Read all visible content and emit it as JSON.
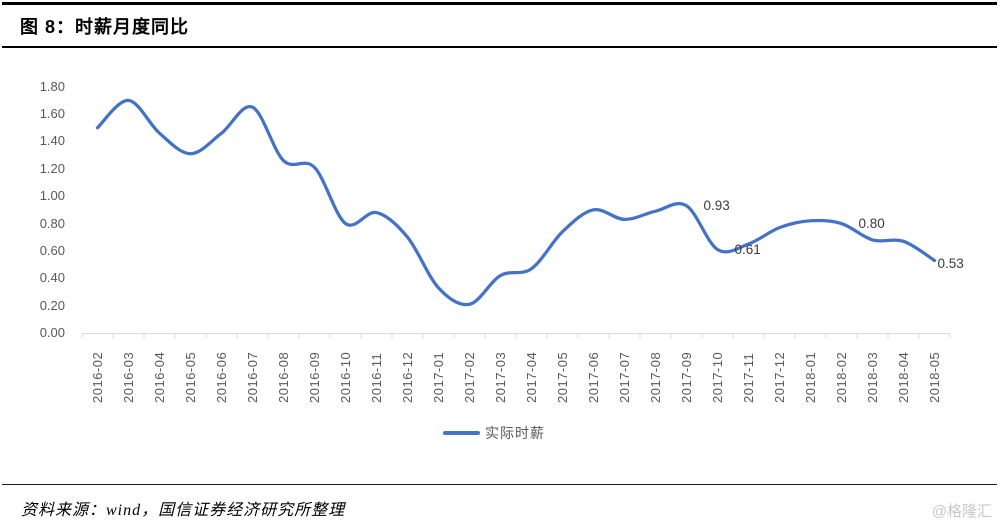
{
  "header": {
    "title": "图 8：时薪月度同比"
  },
  "footer": {
    "source": "资料来源：wind，国信证券经济研究所整理",
    "watermark": "@格隆汇"
  },
  "chart_data": {
    "type": "line",
    "title": "时薪月度同比",
    "smooth": true,
    "grid": false,
    "legend_position": "bottom",
    "xlabel": "",
    "ylabel": "",
    "ylim": [
      0,
      1.8
    ],
    "y_ticks": [
      "1.80",
      "1.60",
      "1.40",
      "1.20",
      "1.00",
      "0.80",
      "0.60",
      "0.40",
      "0.20",
      "0.00"
    ],
    "categories": [
      "2016-02",
      "2016-03",
      "2016-04",
      "2016-05",
      "2016-06",
      "2016-07",
      "2016-08",
      "2016-09",
      "2016-10",
      "2016-11",
      "2016-12",
      "2017-01",
      "2017-02",
      "2017-03",
      "2017-04",
      "2017-05",
      "2017-06",
      "2017-07",
      "2017-08",
      "2017-09",
      "2017-10",
      "2017-11",
      "2017-12",
      "2018-01",
      "2018-02",
      "2018-03",
      "2018-04",
      "2018-05"
    ],
    "series": [
      {
        "name": "实际时薪",
        "color": "#4472C4",
        "values": [
          1.5,
          1.7,
          1.46,
          1.31,
          1.46,
          1.65,
          1.26,
          1.21,
          0.8,
          0.88,
          0.7,
          0.33,
          0.21,
          0.42,
          0.47,
          0.74,
          0.9,
          0.83,
          0.89,
          0.93,
          0.61,
          0.65,
          0.77,
          0.82,
          0.8,
          0.68,
          0.67,
          0.53
        ]
      }
    ],
    "point_labels": [
      {
        "category": "2017-09",
        "text": "0.93",
        "placement": "right"
      },
      {
        "category": "2017-10",
        "text": "0.61",
        "placement": "right"
      },
      {
        "category": "2018-02",
        "text": "0.80",
        "placement": "right"
      },
      {
        "category": "2018-05",
        "text": "0.53",
        "placement": "below-right"
      }
    ],
    "axis_color": "#D9D9D9",
    "tick_label_color": "#595959",
    "data_label_color": "#3a3a3a"
  }
}
